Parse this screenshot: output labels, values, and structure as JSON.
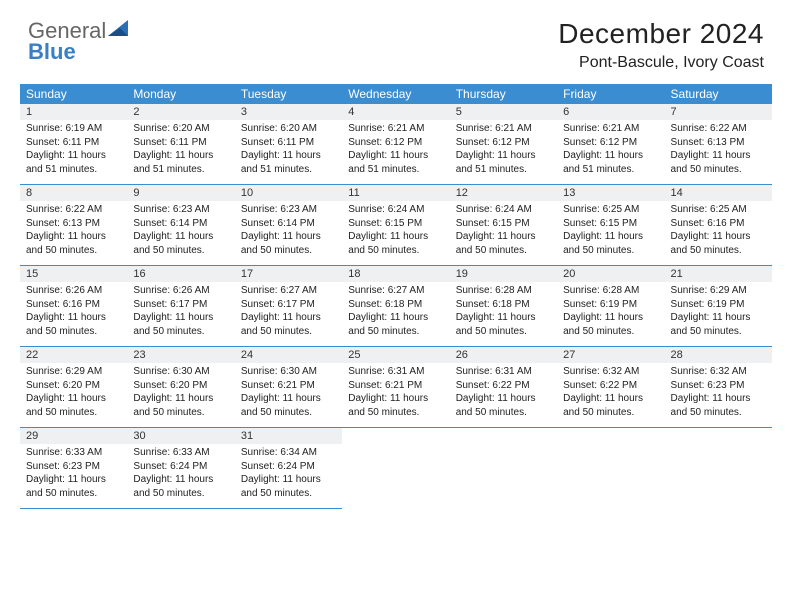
{
  "brand": {
    "word1": "General",
    "word2": "Blue"
  },
  "title": {
    "month": "December 2024",
    "location": "Pont-Bascule, Ivory Coast"
  },
  "colors": {
    "header_bg": "#3a8dd0",
    "header_text": "#ffffff",
    "daynum_bg": "#eef0f2",
    "border": "#3a8dd0",
    "text": "#222222",
    "brand_gray": "#666666",
    "brand_blue": "#3a7fc4"
  },
  "typography": {
    "title_fontsize": 28,
    "location_fontsize": 16,
    "dow_fontsize": 12,
    "body_fontsize": 10
  },
  "dow": [
    "Sunday",
    "Monday",
    "Tuesday",
    "Wednesday",
    "Thursday",
    "Friday",
    "Saturday"
  ],
  "weeks": [
    [
      {
        "n": "1",
        "sr": "6:19 AM",
        "ss": "6:11 PM",
        "dl": "11 hours and 51 minutes."
      },
      {
        "n": "2",
        "sr": "6:20 AM",
        "ss": "6:11 PM",
        "dl": "11 hours and 51 minutes."
      },
      {
        "n": "3",
        "sr": "6:20 AM",
        "ss": "6:11 PM",
        "dl": "11 hours and 51 minutes."
      },
      {
        "n": "4",
        "sr": "6:21 AM",
        "ss": "6:12 PM",
        "dl": "11 hours and 51 minutes."
      },
      {
        "n": "5",
        "sr": "6:21 AM",
        "ss": "6:12 PM",
        "dl": "11 hours and 51 minutes."
      },
      {
        "n": "6",
        "sr": "6:21 AM",
        "ss": "6:12 PM",
        "dl": "11 hours and 51 minutes."
      },
      {
        "n": "7",
        "sr": "6:22 AM",
        "ss": "6:13 PM",
        "dl": "11 hours and 50 minutes."
      }
    ],
    [
      {
        "n": "8",
        "sr": "6:22 AM",
        "ss": "6:13 PM",
        "dl": "11 hours and 50 minutes."
      },
      {
        "n": "9",
        "sr": "6:23 AM",
        "ss": "6:14 PM",
        "dl": "11 hours and 50 minutes."
      },
      {
        "n": "10",
        "sr": "6:23 AM",
        "ss": "6:14 PM",
        "dl": "11 hours and 50 minutes."
      },
      {
        "n": "11",
        "sr": "6:24 AM",
        "ss": "6:15 PM",
        "dl": "11 hours and 50 minutes."
      },
      {
        "n": "12",
        "sr": "6:24 AM",
        "ss": "6:15 PM",
        "dl": "11 hours and 50 minutes."
      },
      {
        "n": "13",
        "sr": "6:25 AM",
        "ss": "6:15 PM",
        "dl": "11 hours and 50 minutes."
      },
      {
        "n": "14",
        "sr": "6:25 AM",
        "ss": "6:16 PM",
        "dl": "11 hours and 50 minutes."
      }
    ],
    [
      {
        "n": "15",
        "sr": "6:26 AM",
        "ss": "6:16 PM",
        "dl": "11 hours and 50 minutes."
      },
      {
        "n": "16",
        "sr": "6:26 AM",
        "ss": "6:17 PM",
        "dl": "11 hours and 50 minutes."
      },
      {
        "n": "17",
        "sr": "6:27 AM",
        "ss": "6:17 PM",
        "dl": "11 hours and 50 minutes."
      },
      {
        "n": "18",
        "sr": "6:27 AM",
        "ss": "6:18 PM",
        "dl": "11 hours and 50 minutes."
      },
      {
        "n": "19",
        "sr": "6:28 AM",
        "ss": "6:18 PM",
        "dl": "11 hours and 50 minutes."
      },
      {
        "n": "20",
        "sr": "6:28 AM",
        "ss": "6:19 PM",
        "dl": "11 hours and 50 minutes."
      },
      {
        "n": "21",
        "sr": "6:29 AM",
        "ss": "6:19 PM",
        "dl": "11 hours and 50 minutes."
      }
    ],
    [
      {
        "n": "22",
        "sr": "6:29 AM",
        "ss": "6:20 PM",
        "dl": "11 hours and 50 minutes."
      },
      {
        "n": "23",
        "sr": "6:30 AM",
        "ss": "6:20 PM",
        "dl": "11 hours and 50 minutes."
      },
      {
        "n": "24",
        "sr": "6:30 AM",
        "ss": "6:21 PM",
        "dl": "11 hours and 50 minutes."
      },
      {
        "n": "25",
        "sr": "6:31 AM",
        "ss": "6:21 PM",
        "dl": "11 hours and 50 minutes."
      },
      {
        "n": "26",
        "sr": "6:31 AM",
        "ss": "6:22 PM",
        "dl": "11 hours and 50 minutes."
      },
      {
        "n": "27",
        "sr": "6:32 AM",
        "ss": "6:22 PM",
        "dl": "11 hours and 50 minutes."
      },
      {
        "n": "28",
        "sr": "6:32 AM",
        "ss": "6:23 PM",
        "dl": "11 hours and 50 minutes."
      }
    ],
    [
      {
        "n": "29",
        "sr": "6:33 AM",
        "ss": "6:23 PM",
        "dl": "11 hours and 50 minutes."
      },
      {
        "n": "30",
        "sr": "6:33 AM",
        "ss": "6:24 PM",
        "dl": "11 hours and 50 minutes."
      },
      {
        "n": "31",
        "sr": "6:34 AM",
        "ss": "6:24 PM",
        "dl": "11 hours and 50 minutes."
      },
      null,
      null,
      null,
      null
    ]
  ],
  "labels": {
    "sunrise": "Sunrise: ",
    "sunset": "Sunset: ",
    "daylight": "Daylight: "
  }
}
